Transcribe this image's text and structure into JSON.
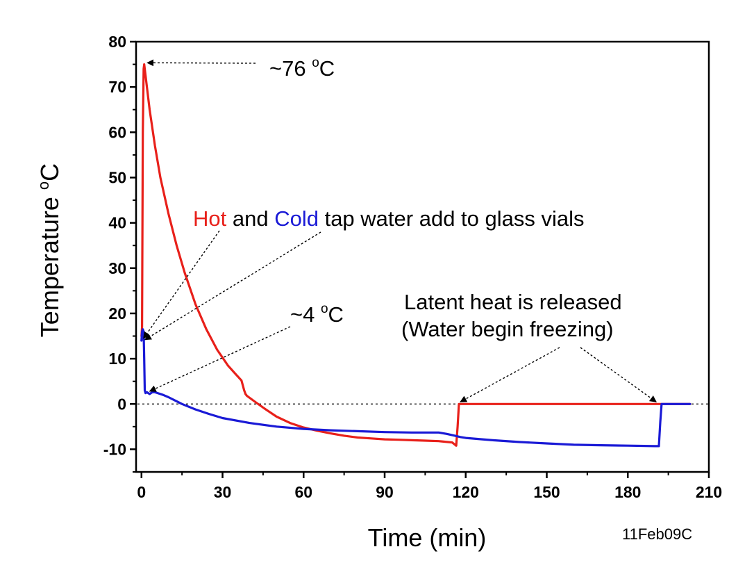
{
  "chart_data": {
    "type": "line",
    "xlabel": "Time (min)",
    "ylabel_main": "Temperature",
    "ylabel_unit": "C",
    "ylabel_degree": "o",
    "xlim": [
      -2,
      210
    ],
    "ylim": [
      -15,
      80
    ],
    "xticks": [
      0,
      30,
      60,
      90,
      120,
      150,
      180,
      210
    ],
    "yticks": [
      -10,
      0,
      10,
      20,
      30,
      40,
      50,
      60,
      70,
      80
    ],
    "xtick_labels": [
      "0",
      "30",
      "60",
      "90",
      "120",
      "150",
      "180",
      "210"
    ],
    "ytick_labels": [
      "-10",
      "0",
      "10",
      "20",
      "30",
      "40",
      "50",
      "60",
      "70",
      "80"
    ],
    "reference_line_y": 0,
    "series": [
      {
        "color": "#e8201a",
        "x": [
          0,
          0.2,
          0.5,
          0.8,
          1,
          2,
          3,
          5,
          7,
          10,
          13,
          16,
          20,
          24,
          28,
          32,
          35,
          37,
          38,
          38.5,
          39,
          42,
          46,
          50,
          55,
          60,
          65,
          70,
          75,
          80,
          85,
          90,
          95,
          100,
          105,
          110,
          115,
          116.5,
          117,
          117.5,
          130,
          150,
          170,
          185,
          190,
          192,
          195,
          200,
          203
        ],
        "y": [
          15,
          17,
          60,
          74,
          75,
          70,
          65,
          57,
          50,
          42,
          35,
          29,
          22,
          16.5,
          12,
          8.5,
          6.5,
          5.2,
          3,
          2.2,
          1.8,
          0.5,
          -1.2,
          -2.8,
          -4.2,
          -5.2,
          -5.9,
          -6.5,
          -7,
          -7.4,
          -7.6,
          -7.8,
          -7.9,
          -8,
          -8.1,
          -8.2,
          -8.5,
          -9.2,
          -5,
          0,
          0,
          0,
          0,
          0,
          0,
          0,
          0,
          0,
          0
        ]
      },
      {
        "color": "#1a1ad6",
        "x": [
          0,
          0.2,
          0.5,
          0.8,
          1,
          1.2,
          1.5,
          2,
          3,
          4,
          5,
          6,
          8,
          10,
          15,
          20,
          25,
          30,
          40,
          50,
          60,
          70,
          80,
          90,
          100,
          105,
          110,
          113,
          116,
          118,
          120,
          130,
          140,
          150,
          160,
          170,
          180,
          190,
          191.5,
          192,
          192.5,
          195,
          200,
          203
        ],
        "y": [
          14,
          16,
          16.5,
          16,
          10,
          3,
          2.4,
          2.6,
          2.2,
          2.6,
          2.6,
          2.4,
          2,
          1.5,
          0,
          -1.2,
          -2.2,
          -3.1,
          -4.2,
          -5,
          -5.5,
          -5.8,
          -6,
          -6.2,
          -6.3,
          -6.3,
          -6.3,
          -6.6,
          -7,
          -7.3,
          -7.5,
          -8,
          -8.4,
          -8.7,
          -9,
          -9.1,
          -9.2,
          -9.3,
          -9.3,
          -4,
          0,
          0,
          0,
          0
        ]
      }
    ],
    "annotations": {
      "hot_peak": {
        "text": "~76 °C",
        "main": "~76 ",
        "degree": "o",
        "unit": "C",
        "point": [
          0.6,
          75.5
        ]
      },
      "cold_min": {
        "text": "~4 °C",
        "main": "~4 ",
        "degree": "o",
        "unit": "C",
        "point": [
          2,
          2.5
        ]
      },
      "tap_water": {
        "hot_word": "Hot",
        "and_word": " and ",
        "cold_word": "Cold",
        "rest": " tap water add to glass vials",
        "hot_color": "#e8201a",
        "cold_color": "#1a1ad6",
        "point": [
          0.5,
          14.5
        ]
      },
      "latent": {
        "line1": "Latent heat is released",
        "line2": "(Water begin freezing)",
        "points": [
          [
            117.5,
            0
          ],
          [
            190,
            0
          ]
        ]
      }
    },
    "stamp": "11Feb09C"
  }
}
